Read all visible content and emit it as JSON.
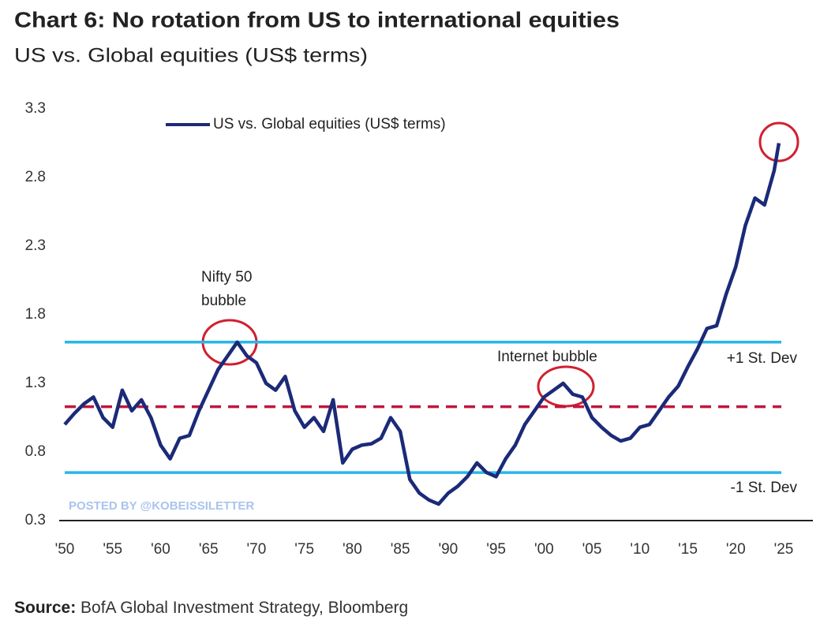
{
  "chart_data": {
    "type": "line",
    "title": "Chart 6: No rotation from US to international equities",
    "subtitle": "US vs. Global equities (US$ terms)",
    "x": [
      1950,
      1951,
      1952,
      1953,
      1954,
      1955,
      1956,
      1957,
      1958,
      1959,
      1960,
      1961,
      1962,
      1963,
      1964,
      1965,
      1966,
      1967,
      1968,
      1969,
      1970,
      1971,
      1972,
      1973,
      1974,
      1975,
      1976,
      1977,
      1978,
      1979,
      1980,
      1981,
      1982,
      1983,
      1984,
      1985,
      1986,
      1987,
      1988,
      1989,
      1990,
      1991,
      1992,
      1993,
      1994,
      1995,
      1996,
      1997,
      1998,
      1999,
      2000,
      2001,
      2002,
      2003,
      2004,
      2005,
      2006,
      2007,
      2008,
      2009,
      2010,
      2011,
      2012,
      2013,
      2014,
      2015,
      2016,
      2017,
      2018,
      2019,
      2020,
      2021,
      2022,
      2023,
      2024,
      2024.5
    ],
    "series": [
      {
        "name": "US vs. Global equities (US$ terms)",
        "color": "#1b2a78",
        "values": [
          1.0,
          1.08,
          1.15,
          1.2,
          1.05,
          0.98,
          1.25,
          1.1,
          1.18,
          1.05,
          0.85,
          0.75,
          0.9,
          0.92,
          1.1,
          1.25,
          1.4,
          1.5,
          1.6,
          1.5,
          1.45,
          1.3,
          1.25,
          1.35,
          1.1,
          0.98,
          1.05,
          0.95,
          1.18,
          0.72,
          0.82,
          0.85,
          0.86,
          0.9,
          1.05,
          0.95,
          0.6,
          0.5,
          0.45,
          0.42,
          0.5,
          0.55,
          0.62,
          0.72,
          0.65,
          0.62,
          0.75,
          0.85,
          1.0,
          1.1,
          1.2,
          1.25,
          1.3,
          1.22,
          1.2,
          1.05,
          0.98,
          0.92,
          0.88,
          0.9,
          0.98,
          1.0,
          1.1,
          1.2,
          1.28,
          1.42,
          1.55,
          1.7,
          1.72,
          1.95,
          2.15,
          2.45,
          2.65,
          2.6,
          2.85,
          3.05
        ]
      }
    ],
    "xlim": [
      1950,
      2025
    ],
    "xticks": [
      {
        "value": 1950,
        "label": "'50"
      },
      {
        "value": 1955,
        "label": "'55"
      },
      {
        "value": 1960,
        "label": "'60"
      },
      {
        "value": 1965,
        "label": "'65"
      },
      {
        "value": 1970,
        "label": "'70"
      },
      {
        "value": 1975,
        "label": "'75"
      },
      {
        "value": 1980,
        "label": "'80"
      },
      {
        "value": 1985,
        "label": "'85"
      },
      {
        "value": 1990,
        "label": "'90"
      },
      {
        "value": 1995,
        "label": "'95"
      },
      {
        "value": 2000,
        "label": "'00"
      },
      {
        "value": 2005,
        "label": "'05"
      },
      {
        "value": 2010,
        "label": "'10"
      },
      {
        "value": 2015,
        "label": "'15"
      },
      {
        "value": 2020,
        "label": "'20"
      },
      {
        "value": 2025,
        "label": "'25"
      }
    ],
    "ylim": [
      0.3,
      3.3
    ],
    "yticks": [
      0.3,
      0.8,
      1.3,
      1.8,
      2.3,
      2.8,
      3.3
    ],
    "reference_lines": [
      {
        "label": "+1 St. Dev",
        "value": 1.6,
        "color": "#29b6e8",
        "style": "solid"
      },
      {
        "label": "-1 St. Dev",
        "value": 0.65,
        "color": "#29b6e8",
        "style": "solid"
      },
      {
        "value": 1.13,
        "color": "#c0163c",
        "style": "dashed"
      }
    ],
    "annotations": [
      "Nifty 50",
      "bubble",
      "Internet bubble"
    ],
    "watermark": "POSTED BY @KOBEISSILETTER",
    "source_label": "Source:",
    "source": "BofA Global Investment Strategy, Bloomberg"
  }
}
